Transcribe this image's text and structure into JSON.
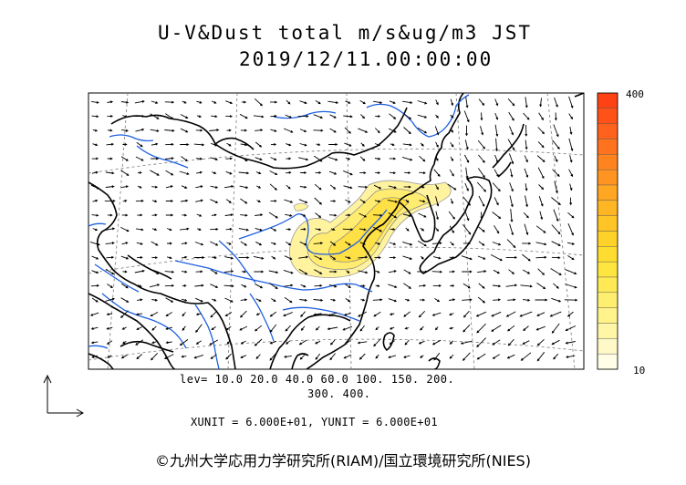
{
  "title": {
    "line1": "U-V&Dust total m/s&ug/m3 JST",
    "line2": "2019/12/11.00:00:00"
  },
  "levels": {
    "line1": "lev= 10.0 20.0 40.0 60.0 100. 150. 200.",
    "line2": "300. 400.",
    "values": [
      10,
      20,
      40,
      60,
      100,
      150,
      200,
      300,
      400
    ]
  },
  "units_text": "XUNIT = 6.000E+01, YUNIT = 6.000E+01",
  "colorbar": {
    "max_label": "400",
    "min_label": "10",
    "colors": [
      "#fffde6",
      "#fff9c8",
      "#fff6a6",
      "#fff38a",
      "#ffef70",
      "#ffea55",
      "#ffe540",
      "#ffdd30",
      "#ffd22a",
      "#ffc526",
      "#ffb624",
      "#ffa622",
      "#ff9520",
      "#ff8420",
      "#ff731e",
      "#ff621c",
      "#ff5218",
      "#ff4214"
    ]
  },
  "copyright": "©九州大学応用力学研究所(RIAM)/国立環境研究所(NIES)",
  "colors": {
    "coast": "#000000",
    "rivers": "#1f5fe0",
    "dust_fill": "#fff3a0",
    "dust_contour": "#888888",
    "grid": "#777777"
  }
}
